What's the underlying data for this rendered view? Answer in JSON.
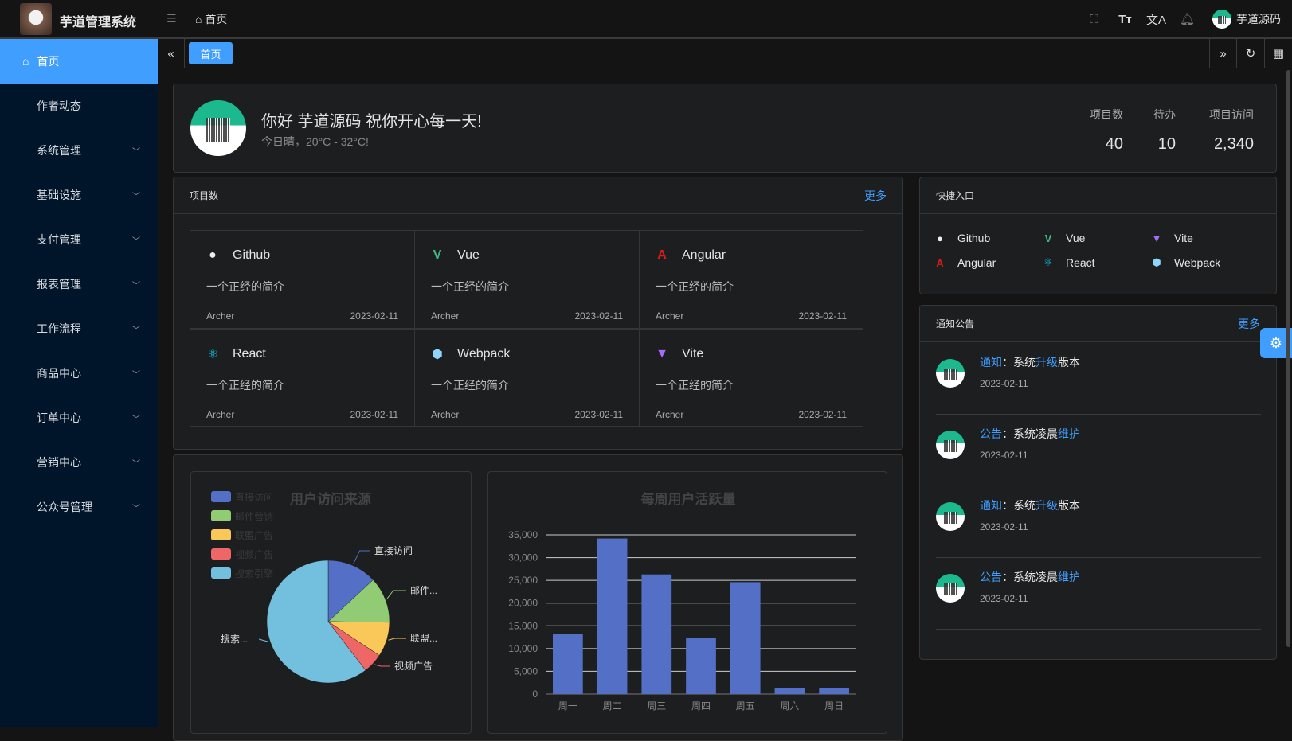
{
  "app": {
    "title": "芋道管理系统"
  },
  "header": {
    "breadcrumb": "首页",
    "user": "芋道源码",
    "icons": [
      "fullscreen-icon",
      "font-size-icon",
      "translate-icon",
      "bell-icon"
    ]
  },
  "sidebar": {
    "items": [
      {
        "label": "首页",
        "active": true
      },
      {
        "label": "作者动态"
      },
      {
        "label": "系统管理",
        "expand": true
      },
      {
        "label": "基础设施",
        "expand": true
      },
      {
        "label": "支付管理",
        "expand": true
      },
      {
        "label": "报表管理",
        "expand": true
      },
      {
        "label": "工作流程",
        "expand": true
      },
      {
        "label": "商品中心",
        "expand": true
      },
      {
        "label": "订单中心",
        "expand": true
      },
      {
        "label": "营销中心",
        "expand": true
      },
      {
        "label": "公众号管理",
        "expand": true
      }
    ]
  },
  "tabs": {
    "items": [
      "首页"
    ]
  },
  "welcome": {
    "greeting": "你好 芋道源码 祝你开心每一天!",
    "weather": "今日晴，20°C - 32°C!",
    "stats": [
      {
        "label": "项目数",
        "value": "40"
      },
      {
        "label": "待办",
        "value": "10"
      },
      {
        "label": "项目访问",
        "value": "2,340"
      }
    ]
  },
  "projects": {
    "title": "项目数",
    "more": "更多",
    "items": [
      {
        "name": "Github",
        "icon": "github-icon",
        "desc": "一个正经的简介",
        "author": "Archer",
        "date": "2023-02-11"
      },
      {
        "name": "Vue",
        "icon": "vue-icon",
        "desc": "一个正经的简介",
        "author": "Archer",
        "date": "2023-02-11"
      },
      {
        "name": "Angular",
        "icon": "angular-icon",
        "desc": "一个正经的简介",
        "author": "Archer",
        "date": "2023-02-11"
      },
      {
        "name": "React",
        "icon": "react-icon",
        "desc": "一个正经的简介",
        "author": "Archer",
        "date": "2023-02-11"
      },
      {
        "name": "Webpack",
        "icon": "webpack-icon",
        "desc": "一个正经的简介",
        "author": "Archer",
        "date": "2023-02-11"
      },
      {
        "name": "Vite",
        "icon": "vite-icon",
        "desc": "一个正经的简介",
        "author": "Archer",
        "date": "2023-02-11"
      }
    ]
  },
  "shortcuts": {
    "title": "快捷入口",
    "items": [
      {
        "name": "Github",
        "icon": "github-icon"
      },
      {
        "name": "Vue",
        "icon": "vue-icon"
      },
      {
        "name": "Vite",
        "icon": "vite-icon"
      },
      {
        "name": "Angular",
        "icon": "angular-icon"
      },
      {
        "name": "React",
        "icon": "react-icon"
      },
      {
        "name": "Webpack",
        "icon": "webpack-icon"
      }
    ]
  },
  "notices": {
    "title": "通知公告",
    "more": "更多",
    "items": [
      {
        "type": "通知",
        "sep": "：",
        "parts": [
          "系统",
          "升级",
          "版本"
        ],
        "date": "2023-02-11"
      },
      {
        "type": "公告",
        "sep": "：",
        "parts": [
          "系统凌晨",
          "维护",
          ""
        ],
        "date": "2023-02-11"
      },
      {
        "type": "通知",
        "sep": "：",
        "parts": [
          "系统",
          "升级",
          "版本"
        ],
        "date": "2023-02-11"
      },
      {
        "type": "公告",
        "sep": "：",
        "parts": [
          "系统凌晨",
          "维护",
          ""
        ],
        "date": "2023-02-11"
      }
    ]
  },
  "chart_data": [
    {
      "type": "pie",
      "title": "用户访问来源",
      "legend_position": "top-left",
      "categories": [
        "直接访问",
        "邮件营销",
        "联盟广告",
        "视频广告",
        "搜索引擎"
      ],
      "labels": [
        "直接访问",
        "邮件...",
        "联盟...",
        "视频广告",
        "搜索..."
      ],
      "values": [
        335,
        310,
        234,
        135,
        1548
      ],
      "colors": [
        "#5470c6",
        "#91cc75",
        "#fac858",
        "#ee6666",
        "#73c0de"
      ]
    },
    {
      "type": "bar",
      "title": "每周用户活跃量",
      "categories": [
        "周一",
        "周二",
        "周三",
        "周四",
        "周五",
        "周六",
        "周日"
      ],
      "values": [
        13200,
        34200,
        26300,
        12300,
        24600,
        1300,
        1300
      ],
      "ylim": [
        0,
        35000
      ],
      "yticks": [
        "0",
        "5,000",
        "10,000",
        "15,000",
        "20,000",
        "25,000",
        "30,000",
        "35,000"
      ],
      "grid": true,
      "color": "#5470c6"
    }
  ]
}
